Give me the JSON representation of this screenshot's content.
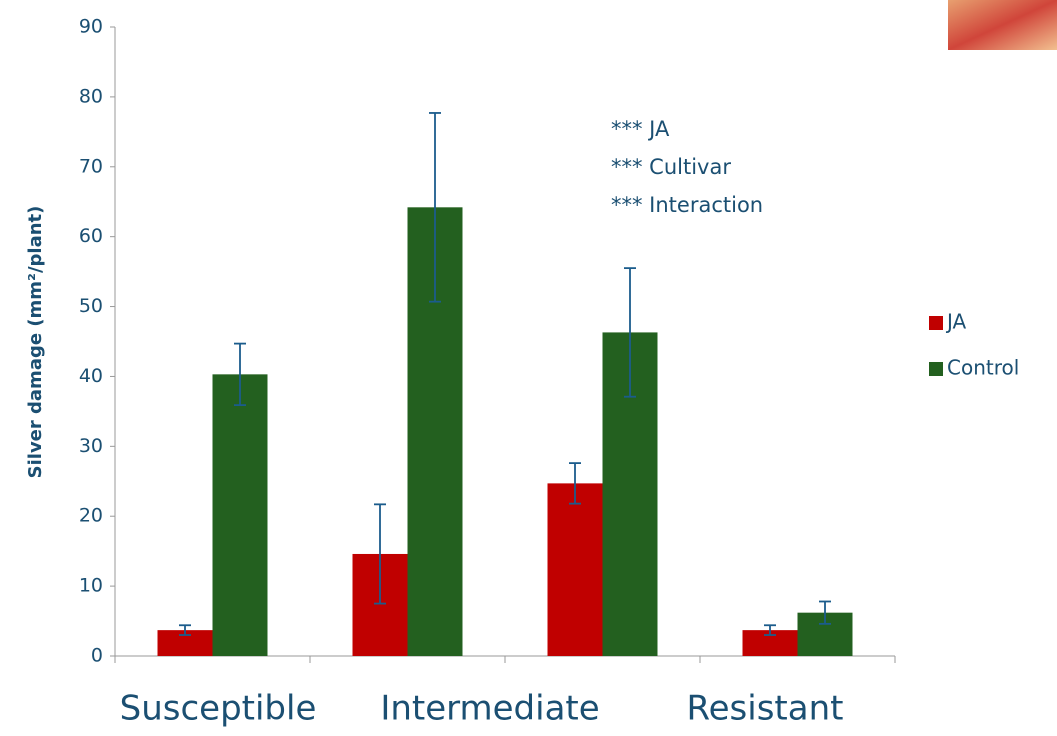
{
  "chart_data": {
    "type": "bar",
    "y_label": "Silver damage (mm²/plant)",
    "categories": [
      "Susceptible",
      "Intermediate",
      null,
      "Resistant"
    ],
    "series": [
      {
        "name": "JA",
        "color": "#c00000",
        "values": [
          3.7,
          14.6,
          24.7,
          3.7
        ],
        "errors": [
          0.7,
          7.1,
          2.9,
          0.7
        ]
      },
      {
        "name": "Control",
        "color": "#23601f",
        "values": [
          40.3,
          64.2,
          46.3,
          6.2
        ],
        "errors": [
          4.4,
          13.5,
          9.2,
          1.6
        ]
      }
    ],
    "annotations": [
      "*** JA",
      "*** Cultivar",
      "*** Interaction"
    ],
    "error_color": "#1b5c8c",
    "ylim": [
      0,
      90
    ],
    "yticks": [
      0,
      10,
      20,
      30,
      40,
      50,
      60,
      70,
      80,
      90
    ]
  }
}
